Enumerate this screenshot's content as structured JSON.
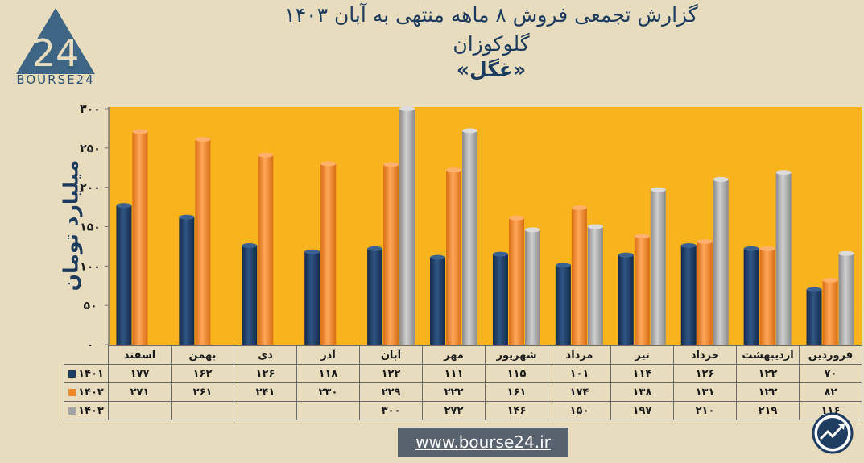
{
  "title": {
    "line1": "گزارش تجمعی فروش ۸ ماهه منتهی به آبان ۱۴۰۳",
    "line2": "گلوکوزان",
    "line3": "«غگل»"
  },
  "logo": {
    "text": "BOURSE24"
  },
  "website": "www.bourse24.ir",
  "colors": {
    "s1401": "#1f3c61",
    "s1402": "#ef8a2c",
    "s1403": "#a4a4a4",
    "plot_bg": "#f9b31c",
    "page_bg": "#e8dcbf"
  },
  "chart_data": {
    "type": "bar",
    "ylabel": "میلیارد تومان",
    "ylim": [
      0,
      300
    ],
    "yticks": [
      "۰",
      "۵۰",
      "۱۰۰",
      "۱۵۰",
      "۲۰۰",
      "۲۵۰",
      "۳۰۰"
    ],
    "categories": [
      "فروردین",
      "اردیبهشت",
      "خرداد",
      "تیر",
      "مرداد",
      "شهریور",
      "مهر",
      "آبان",
      "آذر",
      "دی",
      "بهمن",
      "اسفند"
    ],
    "series": [
      {
        "name": "۱۴۰۱",
        "color": "#1f3c61",
        "values": [
          70,
          122,
          126,
          114,
          101,
          115,
          111,
          122,
          118,
          126,
          162,
          177
        ],
        "labels": [
          "۷۰",
          "۱۲۲",
          "۱۲۶",
          "۱۱۴",
          "۱۰۱",
          "۱۱۵",
          "۱۱۱",
          "۱۲۲",
          "۱۱۸",
          "۱۲۶",
          "۱۶۲",
          "۱۷۷"
        ]
      },
      {
        "name": "۱۴۰۲",
        "color": "#ef8a2c",
        "values": [
          82,
          122,
          131,
          138,
          174,
          161,
          222,
          229,
          230,
          241,
          261,
          271
        ],
        "labels": [
          "۸۲",
          "۱۲۲",
          "۱۳۱",
          "۱۳۸",
          "۱۷۴",
          "۱۶۱",
          "۲۲۲",
          "۲۲۹",
          "۲۳۰",
          "۲۴۱",
          "۲۶۱",
          "۲۷۱"
        ]
      },
      {
        "name": "۱۴۰۳",
        "color": "#a4a4a4",
        "values": [
          116,
          219,
          210,
          197,
          150,
          146,
          272,
          300,
          null,
          null,
          null,
          null
        ],
        "labels": [
          "۱۱۶",
          "۲۱۹",
          "۲۱۰",
          "۱۹۷",
          "۱۵۰",
          "۱۴۶",
          "۲۷۲",
          "۳۰۰",
          "",
          "",
          "",
          ""
        ]
      }
    ],
    "grid": false,
    "legend": "table"
  }
}
